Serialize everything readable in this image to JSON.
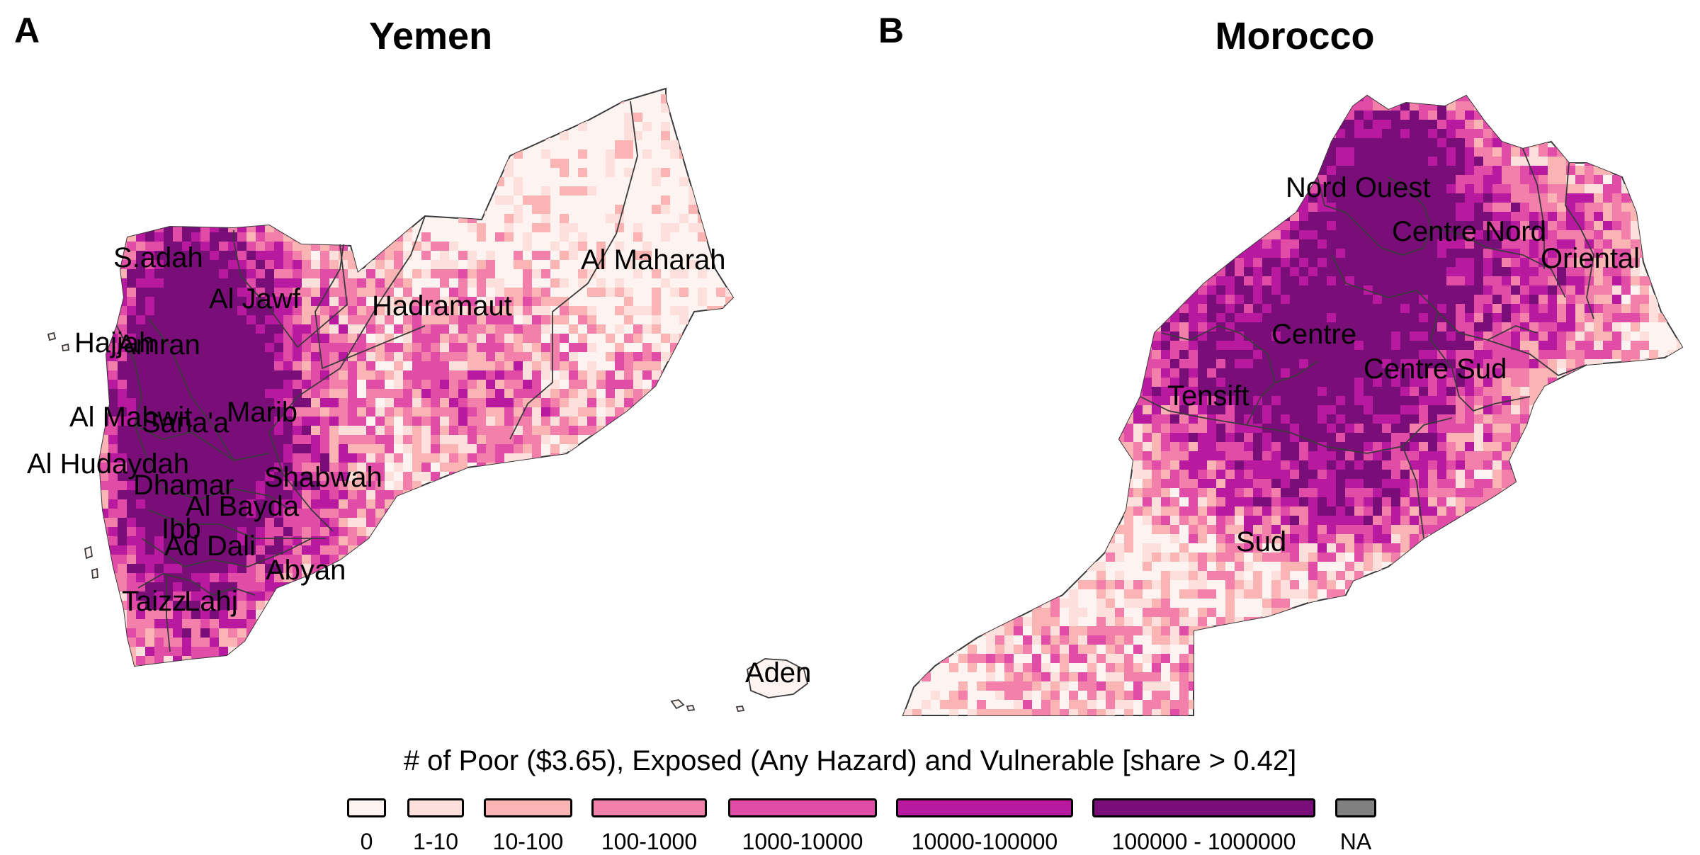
{
  "panels": [
    {
      "letter": "A",
      "title": "Yemen"
    },
    {
      "letter": "B",
      "title": "Morocco"
    }
  ],
  "region_labels": {
    "yemen": [
      "S.adah",
      "Al Jawf",
      "Al Maharah",
      "Hadramaut",
      "Hajjah",
      "Amran",
      "Al Mahwit",
      "Marib",
      "Sana'a",
      "Al Hudaydah",
      "Dhamar",
      "Shabwah",
      "Al Bayda",
      "Ibb",
      "Ad Dali",
      "Abyan",
      "Taizz",
      "Lahj",
      "Aden"
    ],
    "morocco": [
      "Nord Ouest",
      "Centre Nord",
      "Oriental",
      "Centre",
      "Centre Sud",
      "Tensift",
      "Sud"
    ]
  },
  "legend": {
    "title": "# of Poor ($3.65), Exposed (Any Hazard) and Vulnerable [share > 0.42]",
    "items": [
      {
        "label": "0",
        "color": "#fdf4f2"
      },
      {
        "label": "1-10",
        "color": "#fde0dc"
      },
      {
        "label": "10-100",
        "color": "#fbb4b4"
      },
      {
        "label": "100-1000",
        "color": "#f37fab"
      },
      {
        "label": "1000-10000",
        "color": "#e04ca6"
      },
      {
        "label": "10000-100000",
        "color": "#b8199e"
      },
      {
        "label": "100000 - 1000000",
        "color": "#7a0e79"
      },
      {
        "label": "NA",
        "color": "#808080"
      }
    ]
  },
  "colors": {
    "boundary": "#3a3a3a",
    "base_fill": "#fdf4f2"
  }
}
